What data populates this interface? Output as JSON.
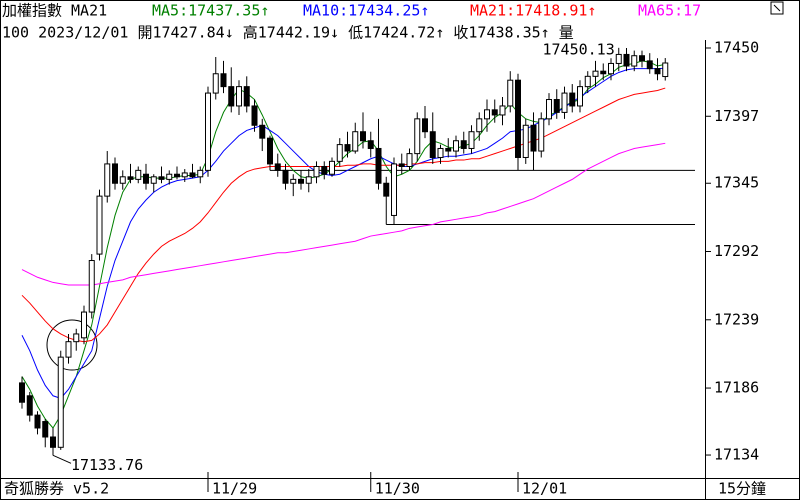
{
  "chart_data": {
    "type": "candlestick",
    "title": "加權指數 MA21",
    "info_line": "100 2023/12/01 開17427.84↓ 高17442.19↓ 低17424.72↑ 收17438.35↑ 量",
    "software": "奇狐勝券 v5.2",
    "period": "15分鐘",
    "high_label": "17450.13",
    "low_label": "17133.76",
    "up_color": "#ffffff",
    "down_color": "#000000",
    "ylim": [
      17118.5,
      17453.1
    ],
    "yticks": [
      17450,
      17397,
      17345,
      17292,
      17239,
      17186,
      17134
    ],
    "support_lines": [
      17313,
      17355
    ],
    "categories": [
      null,
      null,
      null,
      null,
      null,
      null,
      null,
      null,
      null,
      null,
      null,
      null,
      null,
      null,
      null,
      null,
      null,
      null,
      null,
      null,
      null,
      null,
      null,
      null,
      "11/29",
      null,
      null,
      null,
      null,
      null,
      null,
      null,
      null,
      null,
      null,
      null,
      null,
      null,
      null,
      null,
      null,
      null,
      null,
      null,
      null,
      "11/30",
      null,
      null,
      null,
      null,
      null,
      null,
      null,
      null,
      null,
      null,
      null,
      null,
      null,
      null,
      null,
      null,
      null,
      null,
      "12/01",
      null,
      null,
      null,
      null,
      null,
      null,
      null,
      null,
      null,
      null,
      null,
      null,
      null,
      null,
      null,
      null,
      null,
      null,
      null
    ],
    "open": [
      17190,
      17180,
      17165,
      17160,
      17148,
      17140,
      17210,
      17222,
      17225,
      17245,
      17290,
      17335,
      17360,
      17345,
      17350,
      17348,
      17352,
      17345,
      17350,
      17348,
      17352,
      17350,
      17353,
      17350,
      17355,
      17415,
      17430,
      17420,
      17405,
      17420,
      17405,
      17390,
      17380,
      17360,
      17355,
      17345,
      17348,
      17345,
      17350,
      17358,
      17352,
      17362,
      17375,
      17370,
      17385,
      17378,
      17372,
      17345,
      17320,
      17360,
      17358,
      17368,
      17395,
      17385,
      17365,
      17372,
      17370,
      17378,
      17372,
      17385,
      17395,
      17402,
      17398,
      17405,
      17425,
      17365,
      17390,
      17370,
      17395,
      17410,
      17400,
      17415,
      17405,
      17420,
      17428,
      17432,
      17430,
      17438,
      17445,
      17436,
      17444,
      17440,
      17434,
      17427.84
    ],
    "high": [
      17195,
      17183,
      17168,
      17162,
      17155,
      17215,
      17228,
      17232,
      17250,
      17290,
      17340,
      17370,
      17365,
      17355,
      17360,
      17358,
      17360,
      17352,
      17358,
      17355,
      17358,
      17356,
      17360,
      17358,
      17420,
      17443,
      17440,
      17435,
      17425,
      17428,
      17410,
      17395,
      17382,
      17368,
      17360,
      17352,
      17355,
      17356,
      17362,
      17362,
      17365,
      17380,
      17385,
      17392,
      17400,
      17385,
      17395,
      17350,
      17365,
      17368,
      17372,
      17400,
      17405,
      17400,
      17375,
      17380,
      17382,
      17385,
      17390,
      17400,
      17410,
      17410,
      17412,
      17432,
      17430,
      17395,
      17400,
      17400,
      17415,
      17418,
      17420,
      17422,
      17425,
      17432,
      17440,
      17438,
      17442,
      17450.13,
      17450,
      17448,
      17448,
      17446,
      17442,
      17442.19
    ],
    "low": [
      17170,
      17160,
      17150,
      17140,
      17133.76,
      17138,
      17205,
      17215,
      17220,
      17240,
      17285,
      17330,
      17340,
      17340,
      17345,
      17345,
      17340,
      17338,
      17345,
      17344,
      17348,
      17346,
      17349,
      17345,
      17350,
      17410,
      17415,
      17400,
      17398,
      17400,
      17385,
      17370,
      17355,
      17350,
      17340,
      17335,
      17340,
      17338,
      17345,
      17348,
      17350,
      17358,
      17365,
      17368,
      17372,
      17365,
      17340,
      17313,
      17313,
      17352,
      17355,
      17362,
      17380,
      17360,
      17360,
      17365,
      17365,
      17368,
      17368,
      17378,
      17385,
      17392,
      17390,
      17400,
      17355,
      17360,
      17355,
      17365,
      17390,
      17395,
      17395,
      17400,
      17400,
      17415,
      17420,
      17425,
      17425,
      17432,
      17432,
      17432,
      17435,
      17430,
      17425,
      17424.72
    ],
    "close": [
      17175,
      17165,
      17155,
      17148,
      17140,
      17210,
      17222,
      17228,
      17245,
      17285,
      17335,
      17360,
      17345,
      17350,
      17348,
      17355,
      17345,
      17350,
      17348,
      17352,
      17350,
      17353,
      17350,
      17355,
      17415,
      17430,
      17420,
      17405,
      17420,
      17405,
      17390,
      17380,
      17360,
      17355,
      17345,
      17348,
      17345,
      17350,
      17358,
      17352,
      17362,
      17375,
      17370,
      17385,
      17378,
      17372,
      17345,
      17335,
      17360,
      17358,
      17368,
      17395,
      17385,
      17365,
      17372,
      17370,
      17378,
      17372,
      17385,
      17395,
      17402,
      17398,
      17405,
      17425,
      17365,
      17390,
      17370,
      17395,
      17410,
      17400,
      17415,
      17405,
      17420,
      17428,
      17432,
      17430,
      17438,
      17445,
      17436,
      17444,
      17440,
      17434,
      17430,
      17438.35
    ],
    "series": [
      {
        "name": "MA5:17437.35↑",
        "color": "#008000",
        "values": [
          17195,
          17185,
          17172,
          17162,
          17155,
          17165,
          17180,
          17195,
          17215,
          17235,
          17265,
          17295,
          17320,
          17338,
          17348,
          17350,
          17350,
          17349,
          17349,
          17349,
          17350,
          17351,
          17351,
          17352,
          17365,
          17385,
          17400,
          17410,
          17418,
          17415,
          17410,
          17398,
          17385,
          17372,
          17362,
          17355,
          17350,
          17349,
          17350,
          17352,
          17356,
          17362,
          17368,
          17372,
          17377,
          17378,
          17370,
          17358,
          17350,
          17352,
          17355,
          17362,
          17372,
          17378,
          17376,
          17373,
          17372,
          17374,
          17376,
          17382,
          17390,
          17396,
          17400,
          17407,
          17400,
          17395,
          17393,
          17392,
          17398,
          17400,
          17405,
          17408,
          17410,
          17418,
          17422,
          17427,
          17430,
          17435,
          17437,
          17438,
          17440,
          17439,
          17436,
          17437.35
        ]
      },
      {
        "name": "MA10:17434.25↑",
        "color": "#0000ff",
        "values": [
          17227,
          17215,
          17200,
          17188,
          17180,
          17178,
          17185,
          17195,
          17205,
          17215,
          17240,
          17265,
          17285,
          17300,
          17315,
          17325,
          17332,
          17338,
          17342,
          17345,
          17347,
          17348,
          17349,
          17350,
          17355,
          17362,
          17370,
          17376,
          17382,
          17386,
          17388,
          17390,
          17386,
          17382,
          17376,
          17370,
          17364,
          17358,
          17354,
          17352,
          17351,
          17352,
          17355,
          17358,
          17361,
          17364,
          17366,
          17363,
          17360,
          17358,
          17358,
          17360,
          17362,
          17364,
          17365,
          17366,
          17366,
          17367,
          17368,
          17370,
          17372,
          17376,
          17380,
          17385,
          17386,
          17387,
          17390,
          17393,
          17396,
          17400,
          17404,
          17408,
          17412,
          17416,
          17420,
          17424,
          17428,
          17431,
          17433,
          17434,
          17434,
          17434,
          17434,
          17434.25
        ]
      },
      {
        "name": "MA21:17418.91↑",
        "color": "#ff0000",
        "values": [
          17258,
          17252,
          17245,
          17238,
          17232,
          17228,
          17225,
          17223,
          17222,
          17223,
          17228,
          17235,
          17245,
          17255,
          17265,
          17275,
          17283,
          17290,
          17296,
          17300,
          17303,
          17306,
          17310,
          17315,
          17322,
          17330,
          17338,
          17345,
          17350,
          17354,
          17356,
          17357,
          17358,
          17358,
          17358,
          17358,
          17358,
          17358,
          17358,
          17358,
          17358,
          17358,
          17359,
          17359,
          17360,
          17360,
          17359,
          17359,
          17359,
          17359,
          17360,
          17360,
          17361,
          17361,
          17362,
          17362,
          17363,
          17363,
          17364,
          17364,
          17366,
          17368,
          17370,
          17372,
          17374,
          17376,
          17378,
          17380,
          17383,
          17386,
          17389,
          17392,
          17395,
          17398,
          17401,
          17404,
          17407,
          17410,
          17412,
          17414,
          17415,
          17416,
          17417,
          17418.91
        ]
      },
      {
        "name": "MA65:17",
        "color": "#ff00ff",
        "values": [
          17278,
          17275,
          17272,
          17270,
          17268,
          17267,
          17266,
          17266,
          17266,
          17266,
          17267,
          17268,
          17269,
          17270,
          17272,
          17273,
          17274,
          17275,
          17276,
          17277,
          17278,
          17279,
          17280,
          17281,
          17282,
          17283,
          17284,
          17285,
          17286,
          17287,
          17288,
          17289,
          17290,
          17291,
          17291,
          17292,
          17293,
          17294,
          17295,
          17296,
          17297,
          17298,
          17299,
          17300,
          17302,
          17304,
          17305,
          17306,
          17307,
          17308,
          17310,
          17311,
          17312,
          17313,
          17315,
          17316,
          17317,
          17318,
          17319,
          17320,
          17322,
          17323,
          17325,
          17327,
          17329,
          17331,
          17333,
          17336,
          17339,
          17342,
          17345,
          17348,
          17352,
          17356,
          17359,
          17362,
          17365,
          17368,
          17370,
          17372,
          17373,
          17374,
          17375,
          17376
        ]
      }
    ]
  }
}
